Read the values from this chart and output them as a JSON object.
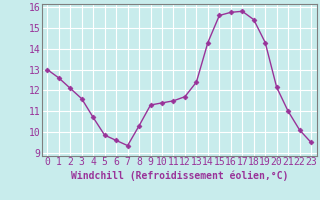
{
  "x": [
    0,
    1,
    2,
    3,
    4,
    5,
    6,
    7,
    8,
    9,
    10,
    11,
    12,
    13,
    14,
    15,
    16,
    17,
    18,
    19,
    20,
    21,
    22,
    23
  ],
  "y": [
    13.0,
    12.6,
    12.1,
    11.6,
    10.7,
    9.85,
    9.6,
    9.35,
    10.3,
    11.3,
    11.4,
    11.5,
    11.7,
    12.4,
    14.3,
    15.6,
    15.75,
    15.8,
    15.4,
    14.3,
    12.15,
    11.0,
    10.1,
    9.5
  ],
  "line_color": "#993399",
  "marker": "D",
  "marker_size": 2.5,
  "bg_color": "#c8ecec",
  "grid_color": "#ffffff",
  "xlabel": "Windchill (Refroidissement éolien,°C)",
  "xlabel_color": "#993399",
  "tick_color": "#993399",
  "ylim": [
    9,
    16
  ],
  "yticks": [
    9,
    10,
    11,
    12,
    13,
    14,
    15,
    16
  ],
  "xlim": [
    -0.5,
    23.5
  ],
  "xticks": [
    0,
    1,
    2,
    3,
    4,
    5,
    6,
    7,
    8,
    9,
    10,
    11,
    12,
    13,
    14,
    15,
    16,
    17,
    18,
    19,
    20,
    21,
    22,
    23
  ],
  "spine_color": "#7f7f7f",
  "label_fontsize": 7.0,
  "tick_fontsize": 7.0,
  "linewidth": 1.0
}
